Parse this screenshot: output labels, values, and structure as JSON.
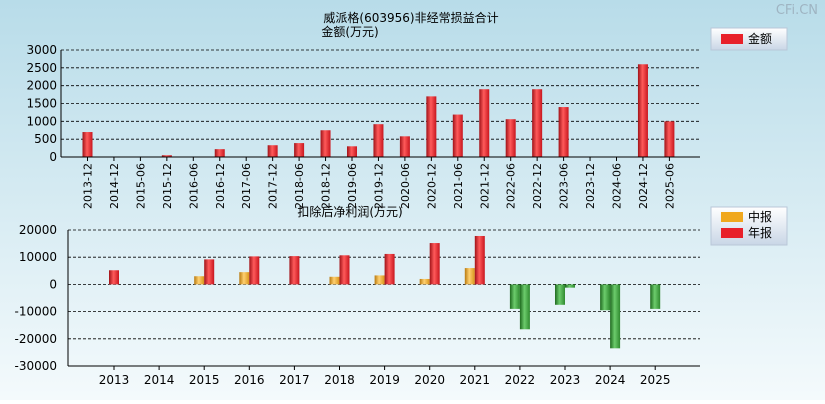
{
  "watermark": "CFi.CN",
  "chart_data": [
    {
      "type": "bar",
      "title": "威派格(603956)非经常损益合计",
      "ylabel": "金额(万元)",
      "ylim": [
        0,
        3000
      ],
      "yticks": [
        0,
        500,
        1000,
        1500,
        2000,
        2500,
        3000
      ],
      "legend": [
        "金额"
      ],
      "legend_position": "top-right",
      "grid": true,
      "categories": [
        "2013-12",
        "2014-12",
        "2015-06",
        "2015-12",
        "2016-06",
        "2016-12",
        "2017-06",
        "2017-12",
        "2018-06",
        "2018-12",
        "2019-06",
        "2019-12",
        "2020-06",
        "2020-12",
        "2021-06",
        "2021-12",
        "2022-06",
        "2022-12",
        "2023-06",
        "2023-12",
        "2024-06",
        "2024-12",
        "2025-06"
      ],
      "series": [
        {
          "name": "金额",
          "color": "#e8202a",
          "values": [
            700,
            0,
            0,
            50,
            0,
            220,
            0,
            330,
            390,
            750,
            300,
            920,
            580,
            1700,
            1190,
            1900,
            1060,
            1900,
            1400,
            0,
            0,
            2600,
            1000
          ]
        }
      ]
    },
    {
      "type": "bar",
      "title": "扣除后净利润(万元)",
      "ylim": [
        -30000,
        20000
      ],
      "yticks": [
        20000,
        10000,
        0,
        -10000,
        -20000,
        -30000
      ],
      "legend": [
        "中报",
        "年报"
      ],
      "legend_position": "top-right",
      "grid": true,
      "categories": [
        "2013",
        "2014",
        "2015",
        "2016",
        "2017",
        "2018",
        "2019",
        "2020",
        "2021",
        "2022",
        "2023",
        "2024",
        "2025"
      ],
      "series": [
        {
          "name": "中报",
          "color": "#f0a81e",
          "values": [
            null,
            null,
            3000,
            4500,
            null,
            2800,
            3300,
            2000,
            6000,
            -9000,
            -7500,
            -9500,
            -9000
          ]
        },
        {
          "name": "年报",
          "color": "#e8202a",
          "values": [
            5200,
            null,
            9200,
            10300,
            10400,
            10700,
            11200,
            15200,
            17800,
            -16500,
            -1200,
            -23500,
            null
          ]
        }
      ],
      "negative_color": "#3a9a3a"
    }
  ]
}
